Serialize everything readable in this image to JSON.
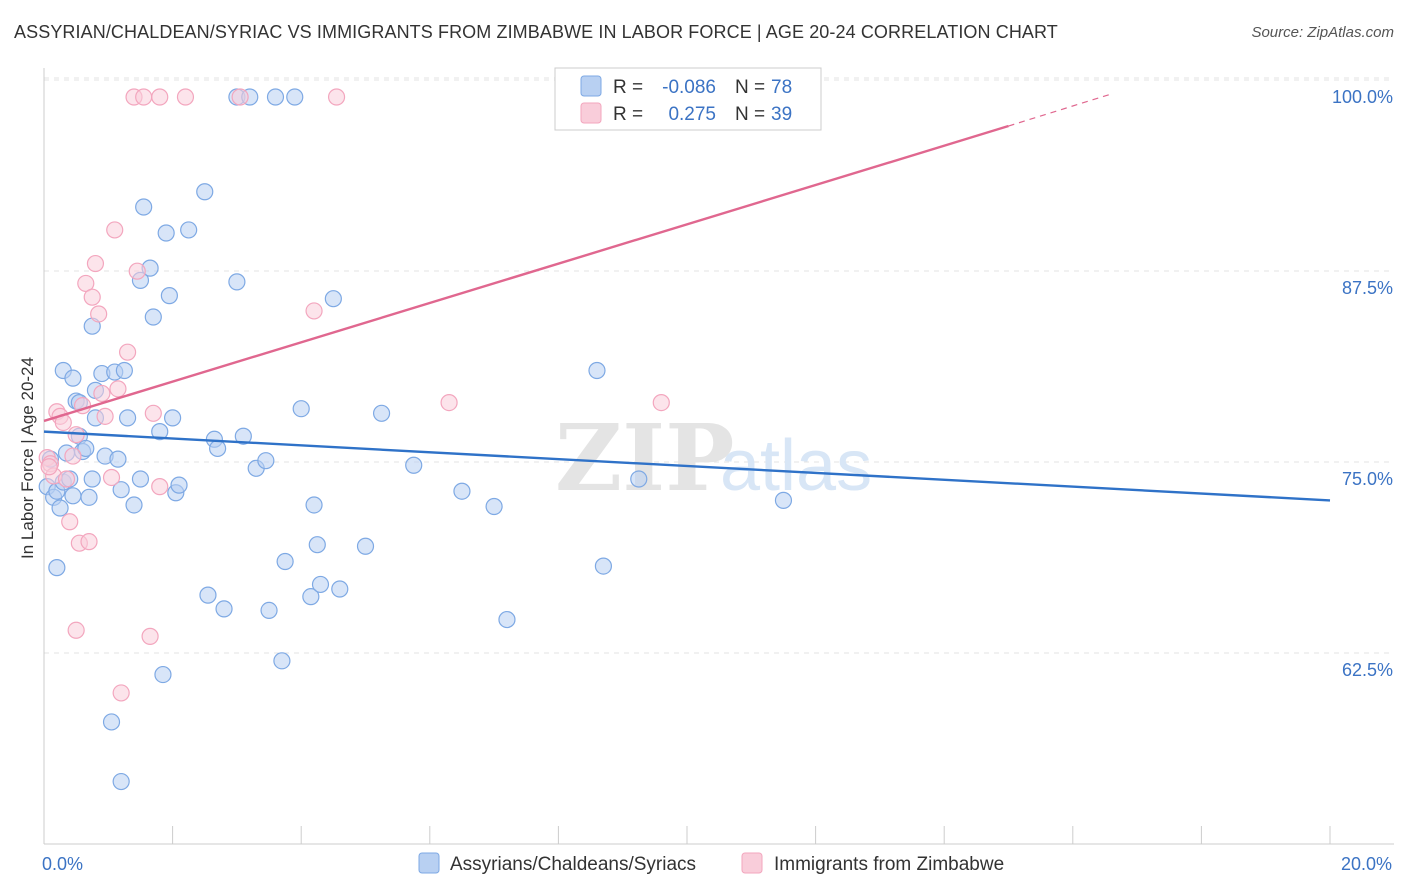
{
  "chart_data": {
    "type": "scatter",
    "title": "ASSYRIAN/CHALDEAN/SYRIAC VS IMMIGRANTS FROM ZIMBABWE IN LABOR FORCE | AGE 20-24 CORRELATION CHART",
    "source": "Source: ZipAtlas.com",
    "xlabel": "",
    "ylabel": "In Labor Force | Age 20-24",
    "xlim": [
      0,
      20
    ],
    "ylim": [
      51,
      102
    ],
    "x_tick_labels": [
      {
        "value": 0,
        "label": "0.0%"
      },
      {
        "value": 20,
        "label": "20.0%"
      }
    ],
    "y_ticks": [
      {
        "value": 62.5,
        "label": "62.5%"
      },
      {
        "value": 75.0,
        "label": "75.0%"
      },
      {
        "value": 87.5,
        "label": "87.5%"
      },
      {
        "value": 100.0,
        "label": "100.0%"
      }
    ],
    "watermark": {
      "zip": "ZIP",
      "atlas": "atlas"
    },
    "legend": {
      "r_label": "R =",
      "n_label": "N =",
      "entries": [
        {
          "name": "Assyrians/Chaldeans/Syriacs",
          "r": "-0.086",
          "n": "78"
        },
        {
          "name": "Immigrants from Zimbabwe",
          "r": "0.275",
          "n": "39"
        }
      ]
    },
    "series": [
      {
        "name": "Assyrians/Chaldeans/Syriacs",
        "color": "#7ea9e4",
        "fill": "#b8d0f2",
        "line_color": "#2f72c8",
        "trend": {
          "x0": 0,
          "y0": 78.1,
          "x1": 20,
          "y1": 73.6
        },
        "points": [
          [
            0.05,
            74.5
          ],
          [
            0.1,
            76.3
          ],
          [
            0.15,
            73.8
          ],
          [
            0.2,
            74.2
          ],
          [
            0.25,
            73.1
          ],
          [
            0.3,
            74.8
          ],
          [
            0.35,
            76.7
          ],
          [
            0.4,
            75.0
          ],
          [
            0.45,
            73.9
          ],
          [
            0.5,
            80.1
          ],
          [
            0.55,
            77.8
          ],
          [
            0.6,
            76.8
          ],
          [
            0.65,
            77.0
          ],
          [
            0.7,
            73.8
          ],
          [
            0.75,
            75.0
          ],
          [
            0.8,
            79.0
          ],
          [
            0.3,
            82.1
          ],
          [
            0.45,
            81.6
          ],
          [
            0.55,
            80.0
          ],
          [
            0.75,
            85.0
          ],
          [
            0.8,
            80.8
          ],
          [
            0.9,
            81.9
          ],
          [
            0.95,
            76.5
          ],
          [
            1.1,
            82.0
          ],
          [
            1.15,
            76.3
          ],
          [
            1.2,
            74.3
          ],
          [
            1.25,
            82.1
          ],
          [
            1.3,
            79.0
          ],
          [
            1.4,
            73.3
          ],
          [
            1.5,
            75.0
          ],
          [
            1.05,
            59.1
          ],
          [
            1.2,
            55.2
          ],
          [
            1.5,
            88.0
          ],
          [
            1.55,
            92.8
          ],
          [
            1.65,
            88.8
          ],
          [
            1.7,
            85.6
          ],
          [
            1.8,
            78.1
          ],
          [
            1.9,
            91.1
          ],
          [
            1.95,
            87.0
          ],
          [
            2.0,
            79.0
          ],
          [
            2.05,
            74.1
          ],
          [
            2.1,
            74.6
          ],
          [
            2.25,
            91.3
          ],
          [
            2.5,
            93.8
          ],
          [
            2.55,
            67.4
          ],
          [
            2.65,
            77.6
          ],
          [
            2.7,
            77.0
          ],
          [
            2.8,
            66.5
          ],
          [
            3.0,
            87.9
          ],
          [
            3.1,
            77.8
          ],
          [
            3.0,
            100.0
          ],
          [
            3.2,
            100.0
          ],
          [
            3.6,
            100.0
          ],
          [
            3.9,
            100.0
          ],
          [
            3.3,
            75.7
          ],
          [
            3.45,
            76.2
          ],
          [
            3.5,
            66.4
          ],
          [
            3.75,
            69.6
          ],
          [
            3.7,
            63.1
          ],
          [
            4.0,
            79.6
          ],
          [
            4.15,
            67.3
          ],
          [
            4.2,
            73.3
          ],
          [
            4.25,
            70.7
          ],
          [
            4.3,
            68.1
          ],
          [
            4.6,
            67.8
          ],
          [
            4.5,
            86.8
          ],
          [
            5.0,
            70.6
          ],
          [
            5.25,
            79.3
          ],
          [
            5.75,
            75.9
          ],
          [
            6.5,
            74.2
          ],
          [
            7.0,
            73.2
          ],
          [
            7.2,
            65.8
          ],
          [
            8.6,
            82.1
          ],
          [
            8.7,
            69.3
          ],
          [
            9.25,
            75.0
          ],
          [
            11.5,
            73.6
          ],
          [
            0.2,
            69.2
          ],
          [
            1.85,
            62.2
          ]
        ]
      },
      {
        "name": "Immigrants from Zimbabwe",
        "color": "#f3a6be",
        "fill": "#f9cdda",
        "line_color": "#e0678f",
        "trend": {
          "x0": 0,
          "y0": 78.8,
          "x1": 15,
          "y1": 98.1
        },
        "trend_ext": {
          "x0": 15,
          "y0": 98.1,
          "x1": 16.6,
          "y1": 100.2
        },
        "points": [
          [
            0.05,
            76.4
          ],
          [
            0.1,
            76.0
          ],
          [
            0.15,
            75.2
          ],
          [
            0.2,
            79.4
          ],
          [
            0.25,
            79.1
          ],
          [
            0.3,
            78.7
          ],
          [
            0.35,
            75.0
          ],
          [
            0.4,
            72.2
          ],
          [
            0.45,
            76.5
          ],
          [
            0.5,
            77.9
          ],
          [
            0.55,
            70.8
          ],
          [
            0.6,
            79.8
          ],
          [
            0.65,
            87.8
          ],
          [
            0.7,
            70.9
          ],
          [
            0.75,
            86.9
          ],
          [
            0.8,
            89.1
          ],
          [
            0.85,
            85.8
          ],
          [
            0.9,
            80.6
          ],
          [
            0.95,
            79.1
          ],
          [
            1.05,
            75.1
          ],
          [
            1.1,
            91.3
          ],
          [
            1.15,
            80.9
          ],
          [
            1.3,
            83.3
          ],
          [
            0.5,
            65.1
          ],
          [
            1.65,
            64.7
          ],
          [
            1.2,
            61.0
          ],
          [
            1.45,
            88.6
          ],
          [
            1.7,
            79.3
          ],
          [
            1.8,
            74.5
          ],
          [
            1.4,
            100.0
          ],
          [
            1.55,
            100.0
          ],
          [
            1.8,
            100.0
          ],
          [
            2.2,
            100.0
          ],
          [
            3.05,
            100.0
          ],
          [
            4.55,
            100.0
          ],
          [
            4.2,
            86.0
          ],
          [
            6.3,
            80.0
          ],
          [
            9.6,
            80.0
          ],
          [
            0.08,
            75.8
          ]
        ]
      }
    ]
  }
}
